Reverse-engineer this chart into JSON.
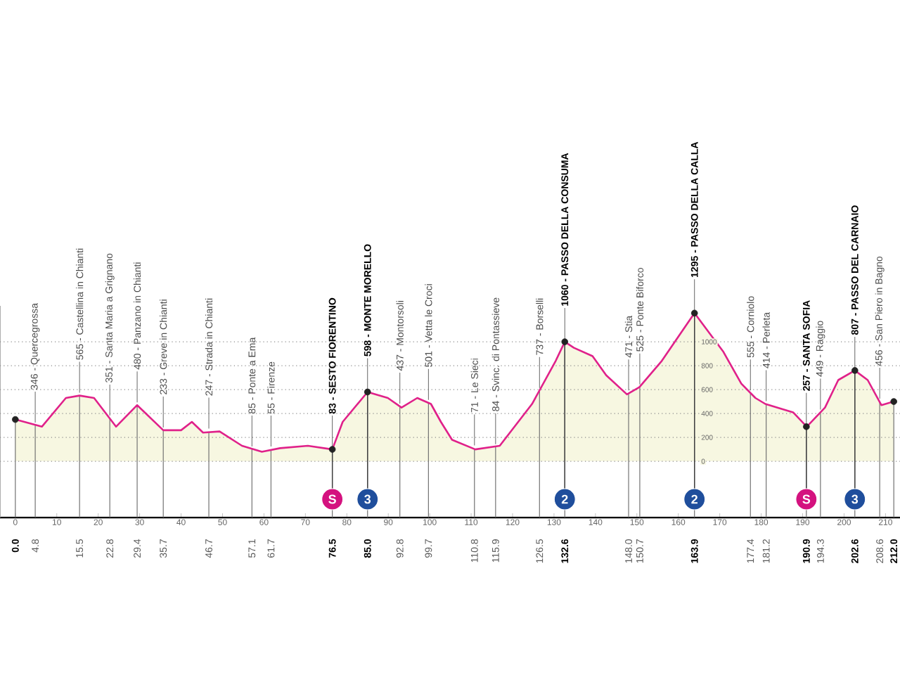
{
  "chart_data": {
    "type": "area",
    "xlim": [
      -3.7,
      213.5
    ],
    "xticks": [
      0,
      10,
      20,
      30,
      40,
      50,
      60,
      70,
      80,
      90,
      100,
      110,
      120,
      130,
      140,
      150,
      160,
      170,
      180,
      190,
      200,
      210
    ],
    "ylim": [
      -470,
      1300
    ],
    "yticks": [
      0,
      200,
      400,
      600,
      800,
      1000
    ],
    "grid": "y",
    "series": [
      {
        "color": "#e0218a",
        "x": [
          0,
          6.4,
          12.2,
          15.5,
          19,
          24.3,
          29.4,
          35.7,
          40,
          42.6,
          45.3,
          49.3,
          54.7,
          59.5,
          63.9,
          70.6,
          76.5,
          79,
          85.0,
          89.9,
          93.2,
          97,
          100.3,
          102.7,
          105.4,
          111,
          116.9,
          124.7,
          130.4,
          132.6,
          134.8,
          139.3,
          142.6,
          147.6,
          150.6,
          156,
          163.9,
          170.8,
          175.2,
          178.6,
          181,
          187.7,
          191,
          195.4,
          198.6,
          202.6,
          205.7,
          209,
          212
        ],
        "values": [
          350,
          290,
          530,
          550,
          530,
          290,
          470,
          260,
          260,
          330,
          240,
          250,
          130,
          80,
          110,
          130,
          100,
          330,
          580,
          530,
          450,
          530,
          480,
          330,
          180,
          100,
          130,
          480,
          840,
          1000,
          950,
          880,
          720,
          560,
          620,
          840,
          1240,
          920,
          650,
          530,
          480,
          410,
          290,
          450,
          680,
          760,
          680,
          470,
          500
        ]
      },
      {
        "type": "scatter",
        "marker": "circle",
        "color": "#222222",
        "x": [
          0,
          76.5,
          85.0,
          132.6,
          163.9,
          190.9,
          202.6,
          212.0
        ],
        "values": [
          350,
          100,
          580,
          1000,
          1240,
          290,
          760,
          500
        ]
      }
    ],
    "ref_lines": [
      {
        "axis": "x",
        "value": 0.0,
        "label": "0.0"
      },
      {
        "axis": "x",
        "value": 4.8,
        "label": "4.8"
      },
      {
        "axis": "x",
        "value": 15.5,
        "label": "15.5"
      },
      {
        "axis": "x",
        "value": 22.8,
        "label": "22.8"
      },
      {
        "axis": "x",
        "value": 29.4,
        "label": "29.4"
      },
      {
        "axis": "x",
        "value": 35.7,
        "label": "35.7"
      },
      {
        "axis": "x",
        "value": 46.7,
        "label": "46.7"
      },
      {
        "axis": "x",
        "value": 57.1,
        "label": "57.1"
      },
      {
        "axis": "x",
        "value": 61.7,
        "label": "61.7"
      },
      {
        "axis": "x",
        "value": 76.5,
        "label": "76.5"
      },
      {
        "axis": "x",
        "value": 85.0,
        "label": "85.0"
      },
      {
        "axis": "x",
        "value": 92.8,
        "label": "92.8"
      },
      {
        "axis": "x",
        "value": 99.7,
        "label": "99.7"
      },
      {
        "axis": "x",
        "value": 110.8,
        "label": "110.8"
      },
      {
        "axis": "x",
        "value": 115.9,
        "label": "115.9"
      },
      {
        "axis": "x",
        "value": 126.5,
        "label": "126.5"
      },
      {
        "axis": "x",
        "value": 132.6,
        "label": "132.6"
      },
      {
        "axis": "x",
        "value": 148.0,
        "label": "148.0"
      },
      {
        "axis": "x",
        "value": 150.7,
        "label": "150.7"
      },
      {
        "axis": "x",
        "value": 163.9,
        "label": "163.9"
      },
      {
        "axis": "x",
        "value": 177.4,
        "label": "177.4"
      },
      {
        "axis": "x",
        "value": 181.2,
        "label": "181.2"
      },
      {
        "axis": "x",
        "value": 190.9,
        "label": "190.9"
      },
      {
        "axis": "x",
        "value": 194.3,
        "label": "194.3"
      },
      {
        "axis": "x",
        "value": 202.6,
        "label": "202.6"
      },
      {
        "axis": "x",
        "value": 208.6,
        "label": "208.6"
      },
      {
        "axis": "x",
        "value": 212.0,
        "label": "212.0"
      }
    ],
    "annotations": [
      {
        "text": "346 - Quercegrossa",
        "x": 4.8,
        "y": 300
      },
      {
        "text": "565 - Castellina in Chianti",
        "x": 15.5,
        "y": 550
      },
      {
        "text": "351 - Santa Maria a Grignano",
        "x": 22.8,
        "y": 360
      },
      {
        "text": "480 - Panzano in Chianti",
        "x": 29.4,
        "y": 470
      },
      {
        "text": "233 - Greve in Chianti",
        "x": 35.7,
        "y": 260
      },
      {
        "text": "247 - Strada in Chianti",
        "x": 46.7,
        "y": 250
      },
      {
        "text": "85 - Ponte a Ema",
        "x": 57.1,
        "y": 100
      },
      {
        "text": "55 - Firenze",
        "x": 61.7,
        "y": 100
      },
      {
        "text": "83 - SESTO FIORENTINO",
        "x": 76.5,
        "y": 100
      },
      {
        "text": "598 - MONTE MORELLO",
        "x": 85.0,
        "y": 580
      },
      {
        "text": "437 - Montorsoli",
        "x": 92.8,
        "y": 460
      },
      {
        "text": "501 - Vetta le Croci",
        "x": 99.7,
        "y": 490
      },
      {
        "text": "71 - Le Sieci",
        "x": 110.8,
        "y": 110
      },
      {
        "text": "84 - Svinc. di Pontassieve",
        "x": 115.9,
        "y": 120
      },
      {
        "text": "737 - Borselli",
        "x": 126.5,
        "y": 590
      },
      {
        "text": "1060 - PASSO DELLA CONSUMA",
        "x": 132.6,
        "y": 1000
      },
      {
        "text": "471 - Stia",
        "x": 148.0,
        "y": 570
      },
      {
        "text": "525 - Ponte Biforco",
        "x": 150.7,
        "y": 620
      },
      {
        "text": "1295 - PASSO DELLA CALLA",
        "x": 163.9,
        "y": 1240
      },
      {
        "text": "555 - Corniolo",
        "x": 177.4,
        "y": 570
      },
      {
        "text": "414 - Perleta",
        "x": 181.2,
        "y": 480
      },
      {
        "text": "257 - SANTA SOFIA",
        "x": 190.9,
        "y": 290
      },
      {
        "text": "449 - Raggio",
        "x": 194.3,
        "y": 410
      },
      {
        "text": "807 - PASSO DEL CARNAIO",
        "x": 202.6,
        "y": 760
      },
      {
        "text": "456 - San Piero in Bagno",
        "x": 208.6,
        "y": 500
      },
      {
        "text": "S",
        "x": 76.5,
        "y": 100
      },
      {
        "text": "3",
        "x": 85.0,
        "y": 580
      },
      {
        "text": "2",
        "x": 132.6,
        "y": 1000
      },
      {
        "text": "2",
        "x": 163.9,
        "y": 1240
      },
      {
        "text": "S",
        "x": 190.9,
        "y": 290
      },
      {
        "text": "3",
        "x": 202.6,
        "y": 760
      }
    ]
  }
}
